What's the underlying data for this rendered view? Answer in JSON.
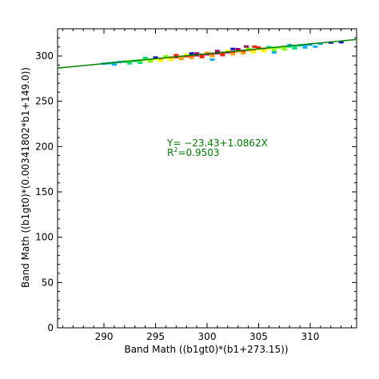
{
  "chart_data": {
    "type": "scatter",
    "xlabel": "Band Math ((b1gt0)*(b1+273.15))",
    "ylabel": "Band Math ((b1gt0)*(0.00341802*b1+149.0))",
    "xlim": [
      285.5,
      314.5
    ],
    "ylim": [
      0,
      330
    ],
    "x_ticks": [
      290,
      295,
      300,
      305,
      310
    ],
    "y_ticks": [
      0,
      50,
      100,
      150,
      200,
      250,
      300
    ],
    "fit_line": {
      "intercept": -23.43,
      "slope": 1.0862,
      "color": "#008000"
    },
    "annotations": {
      "equation_parts": [
        "Y",
        "= ",
        "−23.43+1.0862X"
      ],
      "r2_parts": [
        "R",
        "2",
        "=0.9503"
      ],
      "color": "#008000"
    },
    "grid": false,
    "density_colors": [
      "#1010c0",
      "#00b0ff",
      "#00e080",
      "#80ff00",
      "#ffff00",
      "#ffa000",
      "#ff2000",
      "#a00060"
    ],
    "points": [
      [
        290.0,
        291.5,
        1
      ],
      [
        290.5,
        292.0,
        1
      ],
      [
        291.0,
        292.6,
        2
      ],
      [
        291.5,
        293.3,
        1
      ],
      [
        292.0,
        293.8,
        2
      ],
      [
        292.5,
        294.2,
        3
      ],
      [
        293.0,
        294.6,
        2
      ],
      [
        293.5,
        295.0,
        3
      ],
      [
        294.0,
        295.8,
        4
      ],
      [
        294.5,
        296.0,
        3
      ],
      [
        295.0,
        296.5,
        4
      ],
      [
        295.5,
        297.0,
        5
      ],
      [
        296.0,
        297.6,
        4
      ],
      [
        296.5,
        298.3,
        5
      ],
      [
        297.0,
        298.7,
        6
      ],
      [
        297.5,
        299.2,
        5
      ],
      [
        298.0,
        299.8,
        6
      ],
      [
        298.5,
        300.3,
        6
      ],
      [
        299.0,
        300.8,
        7
      ],
      [
        299.5,
        301.4,
        6
      ],
      [
        300.0,
        301.9,
        7
      ],
      [
        300.5,
        302.5,
        6
      ],
      [
        301.0,
        303.0,
        7
      ],
      [
        301.5,
        303.5,
        6
      ],
      [
        302.0,
        304.1,
        7
      ],
      [
        302.5,
        304.6,
        6
      ],
      [
        303.0,
        305.1,
        5
      ],
      [
        303.5,
        305.6,
        6
      ],
      [
        304.0,
        306.2,
        5
      ],
      [
        304.5,
        306.8,
        5
      ],
      [
        305.0,
        307.3,
        4
      ],
      [
        305.5,
        307.9,
        5
      ],
      [
        306.0,
        308.3,
        4
      ],
      [
        306.5,
        308.9,
        3
      ],
      [
        307.0,
        309.4,
        3
      ],
      [
        307.5,
        310.0,
        3
      ],
      [
        308.0,
        310.5,
        2
      ],
      [
        308.5,
        311.0,
        2
      ],
      [
        309.0,
        311.6,
        2
      ],
      [
        309.5,
        312.1,
        1
      ],
      [
        310.0,
        312.6,
        1
      ],
      [
        311.0,
        313.5,
        1
      ],
      [
        312.0,
        314.8,
        0
      ],
      [
        313.0,
        315.2,
        0
      ],
      [
        291.0,
        290.5,
        1
      ],
      [
        292.5,
        291.8,
        2
      ],
      [
        293.5,
        292.5,
        2
      ],
      [
        294.5,
        293.8,
        3
      ],
      [
        295.5,
        294.6,
        4
      ],
      [
        296.5,
        295.7,
        4
      ],
      [
        297.5,
        296.7,
        5
      ],
      [
        298.5,
        297.8,
        5
      ],
      [
        299.5,
        298.8,
        6
      ],
      [
        300.5,
        299.8,
        5
      ],
      [
        301.5,
        300.9,
        6
      ],
      [
        302.5,
        301.9,
        5
      ],
      [
        303.5,
        302.9,
        5
      ],
      [
        304.5,
        304.0,
        4
      ],
      [
        305.5,
        305.1,
        4
      ],
      [
        306.5,
        306.0,
        3
      ],
      [
        307.5,
        307.2,
        3
      ],
      [
        308.5,
        308.3,
        2
      ],
      [
        309.5,
        309.4,
        1
      ],
      [
        310.5,
        310.3,
        1
      ],
      [
        294.0,
        297.8,
        2
      ],
      [
        296.0,
        299.8,
        3
      ],
      [
        298.0,
        301.6,
        4
      ],
      [
        300.0,
        303.5,
        5
      ],
      [
        302.0,
        305.6,
        4
      ],
      [
        304.0,
        308.0,
        3
      ],
      [
        306.0,
        309.8,
        2
      ],
      [
        308.0,
        312.0,
        1
      ],
      [
        303.0,
        307.5,
        7
      ],
      [
        301.0,
        305.4,
        7
      ],
      [
        297.0,
        300.9,
        6
      ],
      [
        299.0,
        302.8,
        7
      ],
      [
        305.0,
        309.2,
        6
      ],
      [
        303.8,
        310.5,
        7
      ],
      [
        304.6,
        310.3,
        6
      ],
      [
        295.0,
        298.3,
        0
      ],
      [
        298.5,
        302.8,
        0
      ],
      [
        302.5,
        307.8,
        0
      ],
      [
        300.5,
        296.0,
        1
      ],
      [
        306.5,
        303.8,
        1
      ]
    ]
  }
}
